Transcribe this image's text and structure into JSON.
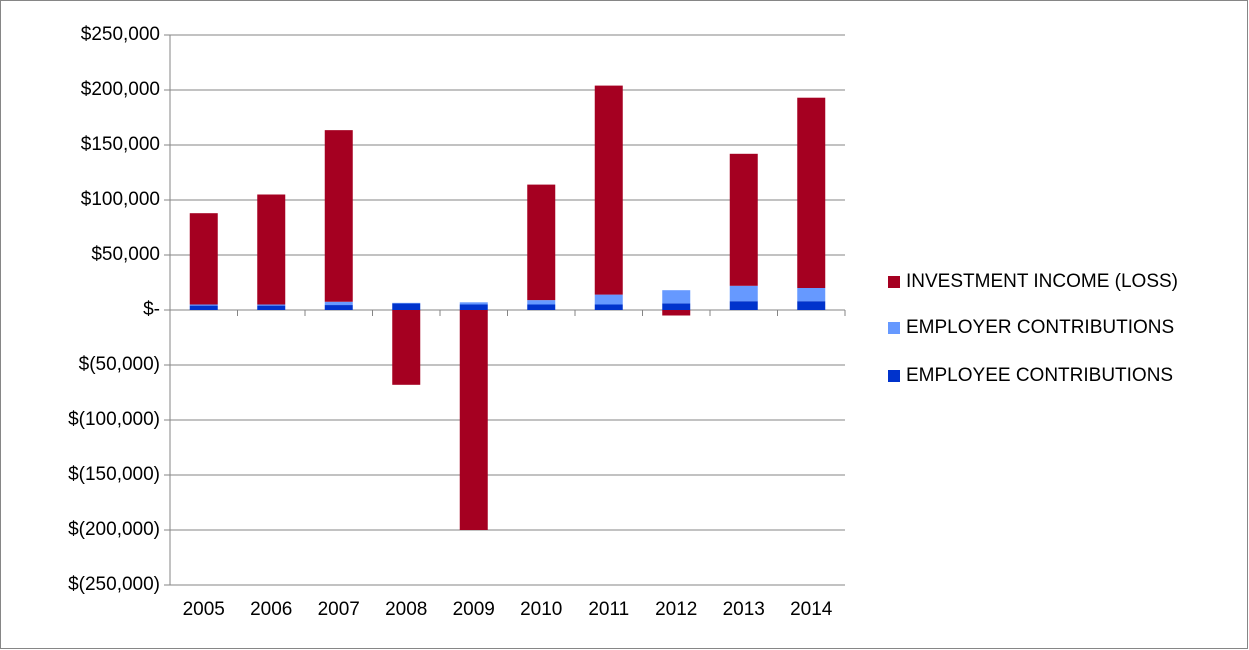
{
  "chart_data": {
    "type": "stacked_bar",
    "categories": [
      "2005",
      "2006",
      "2007",
      "2008",
      "2009",
      "2010",
      "2011",
      "2012",
      "2013",
      "2014"
    ],
    "series": [
      {
        "name": "EMPLOYEE CONTRIBUTIONS",
        "color": "#0033cc",
        "values": [
          4000,
          4000,
          4500,
          6000,
          5000,
          5000,
          5000,
          6000,
          8000,
          8000
        ]
      },
      {
        "name": "EMPLOYER CONTRIBUTIONS",
        "color": "#6699ff",
        "values": [
          1000,
          1000,
          3000,
          500,
          2000,
          4000,
          9000,
          12000,
          14000,
          12000
        ]
      },
      {
        "name": "INVESTMENT INCOME (LOSS)",
        "color": "#a50021",
        "values": [
          83000,
          100000,
          156000,
          -68000,
          -200000,
          105000,
          190000,
          -5000,
          120000,
          173000
        ]
      }
    ],
    "ylim": [
      -250000,
      250000
    ],
    "yticks": [
      {
        "value": -250000,
        "label": "$(250,000)"
      },
      {
        "value": -200000,
        "label": "$(200,000)"
      },
      {
        "value": -150000,
        "label": "$(150,000)"
      },
      {
        "value": -100000,
        "label": "$(100,000)"
      },
      {
        "value": -50000,
        "label": "$(50,000)"
      },
      {
        "value": 0,
        "label": "$-"
      },
      {
        "value": 50000,
        "label": "$50,000"
      },
      {
        "value": 100000,
        "label": "$100,000"
      },
      {
        "value": 150000,
        "label": "$150,000"
      },
      {
        "value": 200000,
        "label": "$200,000"
      },
      {
        "value": 250000,
        "label": "$250,000"
      }
    ],
    "grid": true,
    "legend": "right"
  }
}
